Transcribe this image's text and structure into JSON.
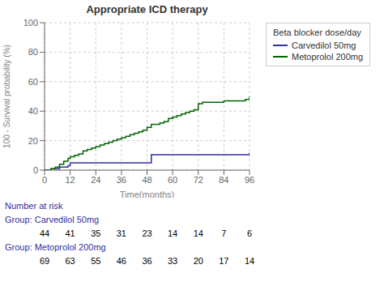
{
  "chart_data": {
    "type": "step",
    "title": "Appropriate ICD therapy",
    "x_label": "Time(months)",
    "y_label": "100 - Survival probability (%)",
    "x": [
      0,
      3,
      5,
      7,
      9,
      11,
      12,
      14,
      16,
      18,
      20,
      22,
      24,
      26,
      28,
      30,
      32,
      34,
      36,
      38,
      40,
      42,
      44,
      46,
      48,
      50,
      52,
      54,
      56,
      58,
      60,
      62,
      64,
      66,
      68,
      70,
      72,
      74,
      76,
      78,
      80,
      82,
      84,
      86,
      88,
      90,
      92,
      94,
      96
    ],
    "series": [
      {
        "name": "Carvedilol 50mg",
        "color": "#3030a0",
        "values": [
          0,
          1,
          1,
          2,
          2,
          3,
          5,
          5,
          5,
          5,
          5,
          5,
          5,
          5,
          5,
          5,
          5,
          5,
          5,
          5,
          5,
          5,
          5,
          5,
          5,
          10.5,
          10.5,
          10.5,
          10.5,
          10.5,
          10.5,
          10.5,
          10.5,
          10.5,
          10.5,
          10.5,
          10.5,
          10.5,
          10.5,
          10.5,
          10.5,
          10.5,
          10.5,
          10.5,
          10.5,
          10.5,
          10.5,
          10.5,
          12
        ]
      },
      {
        "name": "Metoprolol 200mg",
        "color": "#006600",
        "values": [
          0,
          1,
          2,
          4,
          6,
          8,
          9,
          10,
          11,
          13,
          14,
          15,
          16,
          17,
          18,
          19,
          20,
          21,
          22,
          23,
          24,
          25,
          26,
          27,
          29,
          31,
          31,
          32,
          33,
          35,
          36,
          37,
          38,
          39,
          40,
          41,
          45,
          46,
          46,
          46,
          46,
          46,
          47,
          47,
          47,
          47,
          47,
          48,
          50
        ]
      }
    ],
    "xlim": [
      0,
      96
    ],
    "ylim": [
      0,
      100
    ],
    "xticks": [
      0,
      12,
      24,
      36,
      48,
      60,
      72,
      84,
      96
    ],
    "yticks": [
      0,
      20,
      40,
      60,
      80,
      100
    ],
    "grid": true,
    "legend": "right",
    "legend_title": "Beta blocker dose/day",
    "risk_table": {
      "title": "Number at risk",
      "label_color": "#3030a0",
      "x": [
        0,
        12,
        24,
        36,
        48,
        60,
        72,
        84,
        96
      ],
      "rows": [
        {
          "label": "Group: Carvedilol 50mg",
          "values": [
            44,
            41,
            35,
            31,
            23,
            14,
            14,
            7,
            6
          ]
        },
        {
          "label": "Group: Metoprolol 200mg",
          "values": [
            69,
            63,
            55,
            46,
            36,
            33,
            20,
            17,
            14
          ]
        }
      ]
    }
  }
}
